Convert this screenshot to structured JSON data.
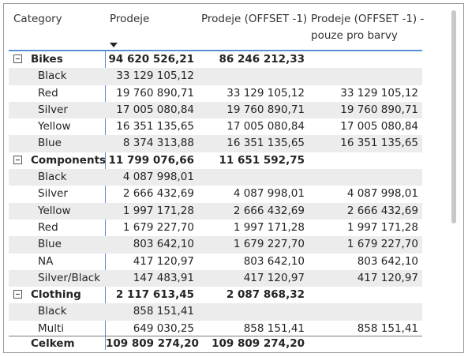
{
  "headers": {
    "category": "Category",
    "prodeje": "Prodeje",
    "prodeje_offset": "Prodeje (OFFSET -1)",
    "prodeje_offset_colors": "Prodeje (OFFSET -1) - pouze pro barvy"
  },
  "rows": [
    {
      "group": true,
      "name": "Bikes",
      "v1": "94 620 526,21",
      "v2": "86 246 212,33",
      "v3": ""
    },
    {
      "group": false,
      "name": "Black",
      "v1": "33 129 105,12",
      "v2": "",
      "v3": ""
    },
    {
      "group": false,
      "name": "Red",
      "v1": "19 760 890,71",
      "v2": "33 129 105,12",
      "v3": "33 129 105,12"
    },
    {
      "group": false,
      "name": "Silver",
      "v1": "17 005 080,84",
      "v2": "19 760 890,71",
      "v3": "19 760 890,71"
    },
    {
      "group": false,
      "name": "Yellow",
      "v1": "16 351 135,65",
      "v2": "17 005 080,84",
      "v3": "17 005 080,84"
    },
    {
      "group": false,
      "name": "Blue",
      "v1": "8 374 313,88",
      "v2": "16 351 135,65",
      "v3": "16 351 135,65"
    },
    {
      "group": true,
      "name": "Components",
      "v1": "11 799 076,66",
      "v2": "11 651 592,75",
      "v3": ""
    },
    {
      "group": false,
      "name": "Black",
      "v1": "4 087 998,01",
      "v2": "",
      "v3": ""
    },
    {
      "group": false,
      "name": "Silver",
      "v1": "2 666 432,69",
      "v2": "4 087 998,01",
      "v3": "4 087 998,01"
    },
    {
      "group": false,
      "name": "Yellow",
      "v1": "1 997 171,28",
      "v2": "2 666 432,69",
      "v3": "2 666 432,69"
    },
    {
      "group": false,
      "name": "Red",
      "v1": "1 679 227,70",
      "v2": "1 997 171,28",
      "v3": "1 997 171,28"
    },
    {
      "group": false,
      "name": "Blue",
      "v1": "803 642,10",
      "v2": "1 679 227,70",
      "v3": "1 679 227,70"
    },
    {
      "group": false,
      "name": "NA",
      "v1": "417 120,97",
      "v2": "803 642,10",
      "v3": "803 642,10"
    },
    {
      "group": false,
      "name": "Silver/Black",
      "v1": "147 483,91",
      "v2": "417 120,97",
      "v3": "417 120,97"
    },
    {
      "group": true,
      "name": "Clothing",
      "v1": "2 117 613,45",
      "v2": "2 087 868,32",
      "v3": ""
    },
    {
      "group": false,
      "name": "Black",
      "v1": "858 151,41",
      "v2": "",
      "v3": ""
    },
    {
      "group": false,
      "name": "Multi",
      "v1": "649 030,25",
      "v2": "858 151,41",
      "v3": "858 151,41"
    }
  ],
  "total": {
    "name": "Celkem",
    "v1": "109 809 274,20",
    "v2": "109 809 274,20"
  },
  "colors": {
    "accent": "#5b8ed6",
    "shaded_row": "#ececec"
  },
  "icons": {
    "sort": "sort-descending-icon",
    "expander": "collapse-minus-icon"
  }
}
